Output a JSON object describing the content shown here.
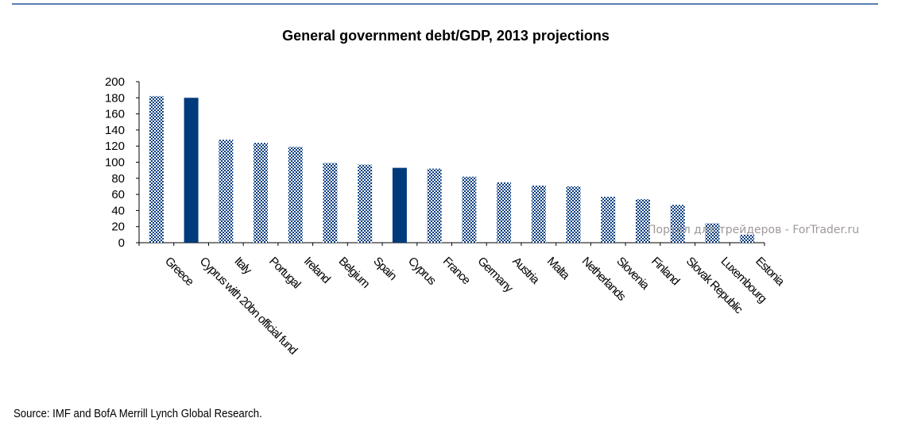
{
  "chart_data": {
    "type": "bar",
    "title": "General government debt/GDP, 2013 projections",
    "xlabel": "",
    "ylabel": "",
    "ylim": [
      0,
      200
    ],
    "yticks": [
      0,
      20,
      40,
      60,
      80,
      100,
      120,
      140,
      160,
      180,
      200
    ],
    "grid": false,
    "categories": [
      "Greece",
      "Cyprus with 20bn official fund",
      "Italy",
      "Portugal",
      "Ireland",
      "Belgium",
      "Spain",
      "Cyprus",
      "France",
      "Germany",
      "Austria",
      "Malta",
      "Netherlands",
      "Slovenia",
      "Finland",
      "Slovak Republic",
      "Luxembourg",
      "Estonia"
    ],
    "values": [
      182,
      180,
      128,
      124,
      119,
      99,
      97,
      93,
      92,
      82,
      75,
      71,
      70,
      57,
      54,
      47,
      24,
      10
    ],
    "highlighted": [
      "Cyprus with 20bn official fund",
      "Cyprus"
    ],
    "colors": {
      "bar": "#003a80",
      "highlight": "#003a7a",
      "pattern": "checkerboard"
    }
  },
  "watermark": "Портал для трейдеров - ForTrader.ru",
  "source": "Source: IMF and BofA Merrill Lynch Global Research."
}
